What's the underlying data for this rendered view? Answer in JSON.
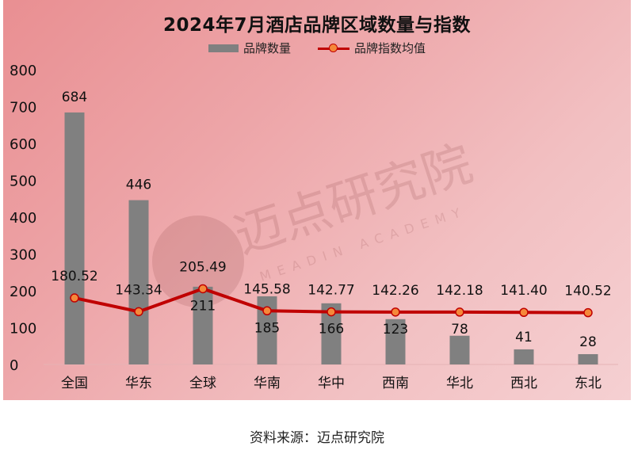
{
  "title": "2024年7月酒店品牌区域数量与指数",
  "legend": {
    "bar_label": "品牌数量",
    "line_label": "品牌指数均值"
  },
  "watermark": {
    "cn": "迈点研究院",
    "en": "MEADIN ACADEMY"
  },
  "source": "资料来源：迈点研究院",
  "colors": {
    "bar": "#808080",
    "line": "#c00000",
    "marker_fill": "#f5883a",
    "background_start": "#e98f92",
    "background_end": "#f5d0d2"
  },
  "chart_data": {
    "type": "bar",
    "title": "2024年7月酒店品牌区域数量与指数",
    "xlabel": "",
    "ylabel": "",
    "ylim": [
      0,
      800
    ],
    "yticks": [
      0,
      100,
      200,
      300,
      400,
      500,
      600,
      700,
      800
    ],
    "grid": false,
    "legend_position": "top",
    "categories": [
      "全国",
      "华东",
      "全球",
      "华南",
      "华中",
      "西南",
      "华北",
      "西北",
      "东北"
    ],
    "series": [
      {
        "name": "品牌数量",
        "type": "bar",
        "values": [
          684,
          446,
          211,
          185,
          166,
          123,
          78,
          41,
          28
        ]
      },
      {
        "name": "品牌指数均值",
        "type": "line",
        "values": [
          180.52,
          143.34,
          205.49,
          145.58,
          142.77,
          142.26,
          142.18,
          141.4,
          140.52
        ]
      }
    ]
  }
}
